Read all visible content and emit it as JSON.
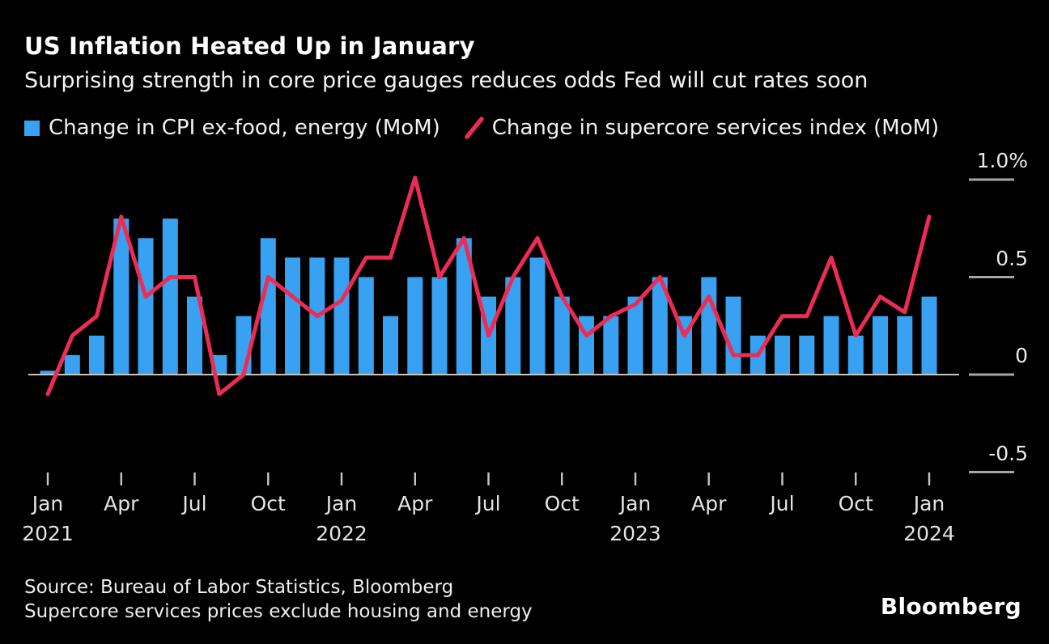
{
  "header": {
    "title": "US Inflation Heated Up in January",
    "subtitle": "Surprising strength in core price gauges reduces odds Fed will cut rates soon"
  },
  "legend": [
    {
      "label": "Change in CPI ex-food, energy (MoM)",
      "swatch": "square",
      "color": "#38A1F1"
    },
    {
      "label": "Change in supercore services index (MoM)",
      "swatch": "slash",
      "color": "#EC2C55"
    }
  ],
  "chart_data": {
    "type": "bar+line",
    "unit": "%",
    "categories": [
      "Jan 2021",
      "Feb 2021",
      "Mar 2021",
      "Apr 2021",
      "May 2021",
      "Jun 2021",
      "Jul 2021",
      "Aug 2021",
      "Sep 2021",
      "Oct 2021",
      "Nov 2021",
      "Dec 2021",
      "Jan 2022",
      "Feb 2022",
      "Mar 2022",
      "Apr 2022",
      "May 2022",
      "Jun 2022",
      "Jul 2022",
      "Aug 2022",
      "Sep 2022",
      "Oct 2022",
      "Nov 2022",
      "Dec 2022",
      "Jan 2023",
      "Feb 2023",
      "Mar 2023",
      "Apr 2023",
      "May 2023",
      "Jun 2023",
      "Jul 2023",
      "Aug 2023",
      "Sep 2023",
      "Oct 2023",
      "Nov 2023",
      "Dec 2023",
      "Jan 2024"
    ],
    "series": [
      {
        "name": "Change in CPI ex-food, energy (MoM)",
        "type": "bar",
        "color": "#38A1F1",
        "values": [
          0.02,
          0.1,
          0.2,
          0.8,
          0.7,
          0.8,
          0.4,
          0.1,
          0.3,
          0.7,
          0.6,
          0.6,
          0.6,
          0.5,
          0.3,
          0.5,
          0.5,
          0.7,
          0.4,
          0.5,
          0.6,
          0.4,
          0.3,
          0.3,
          0.4,
          0.5,
          0.3,
          0.5,
          0.4,
          0.2,
          0.2,
          0.2,
          0.3,
          0.2,
          0.3,
          0.3,
          0.4
        ]
      },
      {
        "name": "Change in supercore services index (MoM)",
        "type": "line",
        "color": "#EC2C55",
        "values": [
          -0.1,
          0.2,
          0.3,
          0.81,
          0.4,
          0.5,
          0.5,
          -0.1,
          0.0,
          0.5,
          0.4,
          0.3,
          0.38,
          0.6,
          0.6,
          1.01,
          0.5,
          0.7,
          0.2,
          0.5,
          0.7,
          0.4,
          0.2,
          0.3,
          0.36,
          0.5,
          0.2,
          0.4,
          0.1,
          0.1,
          0.3,
          0.3,
          0.6,
          0.2,
          0.4,
          0.32,
          0.81
        ]
      }
    ],
    "ylim": [
      -0.75,
      1.1
    ],
    "y_ticks": [
      {
        "value": 1.0,
        "label": "1.0%"
      },
      {
        "value": 0.5,
        "label": "0.5"
      },
      {
        "value": 0.0,
        "label": "0"
      },
      {
        "value": -0.5,
        "label": "-0.5"
      }
    ],
    "x_ticks": [
      {
        "index": 0,
        "month": "Jan",
        "year": "2021"
      },
      {
        "index": 3,
        "month": "Apr"
      },
      {
        "index": 6,
        "month": "Jul"
      },
      {
        "index": 9,
        "month": "Oct"
      },
      {
        "index": 12,
        "month": "Jan",
        "year": "2022"
      },
      {
        "index": 15,
        "month": "Apr"
      },
      {
        "index": 18,
        "month": "Jul"
      },
      {
        "index": 21,
        "month": "Oct"
      },
      {
        "index": 24,
        "month": "Jan",
        "year": "2023"
      },
      {
        "index": 27,
        "month": "Apr"
      },
      {
        "index": 30,
        "month": "Jul"
      },
      {
        "index": 33,
        "month": "Oct"
      },
      {
        "index": 36,
        "month": "Jan",
        "year": "2024"
      }
    ],
    "legend_position": "top",
    "grid": "right-side tick dashes only, zero baseline across plot"
  },
  "footer": {
    "source_line1": "Source: Bureau of Labor Statistics, Bloomberg",
    "source_line2": "Supercore services prices exclude housing and energy",
    "logo": "Bloomberg"
  },
  "colors": {
    "background": "#000000",
    "bar": "#38A1F1",
    "line": "#EC2C55",
    "title_text": "#FFFFFF",
    "axis_text": "#E4E4E4",
    "baseline": "#C9C3B8",
    "tick": "#C6C6C6",
    "grid_dash": "#A6A6A6"
  }
}
